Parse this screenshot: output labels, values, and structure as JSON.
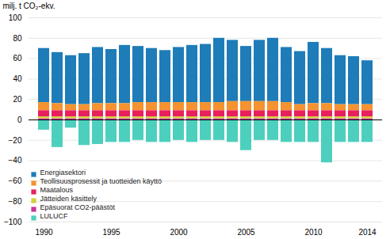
{
  "chart_data": {
    "type": "bar",
    "stacked": true,
    "ylabel": "milj. t CO₂-ekv.",
    "categories": [
      "1990",
      null,
      null,
      null,
      null,
      "1995",
      null,
      null,
      null,
      null,
      "2000",
      null,
      null,
      null,
      null,
      "2005",
      null,
      null,
      null,
      null,
      "2010",
      null,
      null,
      null,
      "2014"
    ],
    "series": [
      {
        "name": "Energiasektori",
        "color": "#1e7cb8",
        "values": [
          53,
          50,
          48,
          50,
          55,
          53,
          57,
          55,
          53,
          51,
          54,
          56,
          57,
          63,
          60,
          54,
          60,
          62,
          54,
          52,
          60,
          54,
          48,
          47,
          43
        ]
      },
      {
        "name": "Teollisuusprosessit ja tuotteiden käyttö",
        "color": "#f4932f",
        "values": [
          8,
          7,
          6,
          6,
          7,
          7,
          7,
          8,
          8,
          8,
          8,
          8,
          8,
          8,
          9,
          9,
          9,
          9,
          8,
          6,
          7,
          7,
          6,
          6,
          6
        ]
      },
      {
        "name": "Maatalous",
        "color": "#e8205d",
        "values": [
          6,
          6,
          6,
          6,
          6,
          6,
          6,
          6,
          6,
          6,
          6,
          6,
          6,
          6,
          6,
          6,
          6,
          6,
          6,
          6,
          6,
          6,
          6,
          6,
          6
        ]
      },
      {
        "name": "Jätteiden käsittely",
        "color": "#d0d03a",
        "values": [
          2,
          2,
          2,
          2,
          2,
          2,
          2,
          2,
          2,
          2,
          2,
          2,
          2,
          2,
          2,
          2,
          2,
          2,
          2,
          2,
          2,
          2,
          2,
          2,
          2
        ]
      },
      {
        "name": "Epäsuorat CO2-päästöt",
        "color": "#c8359a",
        "values": [
          1,
          1,
          1,
          1,
          1,
          1,
          1,
          1,
          1,
          1,
          1,
          1,
          1,
          1,
          1,
          1,
          1,
          1,
          1,
          1,
          1,
          1,
          1,
          1,
          1
        ]
      },
      {
        "name": "LULUCF",
        "color": "#4dcfbe",
        "values": [
          -10,
          -27,
          -8,
          -25,
          -24,
          -22,
          -22,
          -20,
          -22,
          -22,
          -20,
          -22,
          -20,
          -20,
          -22,
          -30,
          -20,
          -20,
          -22,
          -22,
          -22,
          -42,
          -22,
          -22,
          -22
        ]
      }
    ],
    "ylim": [
      -100,
      100
    ],
    "yticks": [
      -100,
      -80,
      -60,
      -40,
      -20,
      0,
      20,
      40,
      60,
      80,
      100
    ],
    "grid": true,
    "legend": "lower left"
  }
}
